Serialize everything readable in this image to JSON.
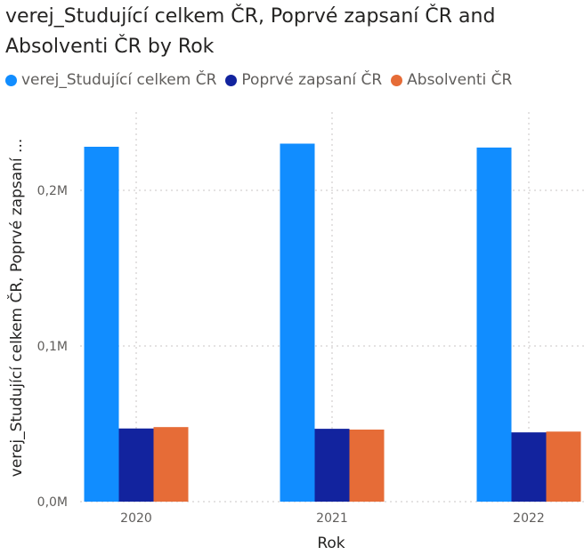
{
  "chart_data": {
    "type": "bar",
    "title": "verej_Studující celkem ČR, Poprvé zapsaní ČR and Absolventi ČR by Rok",
    "xlabel": "Rok",
    "ylabel": "verej_Studující celkem ČR, Poprvé zapsaní ...",
    "categories": [
      "2020",
      "2021",
      "2022"
    ],
    "series": [
      {
        "name": "verej_Studující celkem ČR",
        "color": "#118DFF",
        "values": [
          228000,
          230000,
          227500
        ]
      },
      {
        "name": "Poprvé zapsaní ČR",
        "color": "#12239E",
        "values": [
          47000,
          46800,
          44500
        ]
      },
      {
        "name": "Absolventi ČR",
        "color": "#E66C37",
        "values": [
          47900,
          46300,
          45000
        ]
      }
    ],
    "ylim": [
      0,
      250000
    ],
    "yticks": [
      0,
      100000,
      200000
    ],
    "ytick_labels": [
      "0,0M",
      "0,1M",
      "0,2M"
    ],
    "grid": true,
    "legend_position": "top-left"
  }
}
